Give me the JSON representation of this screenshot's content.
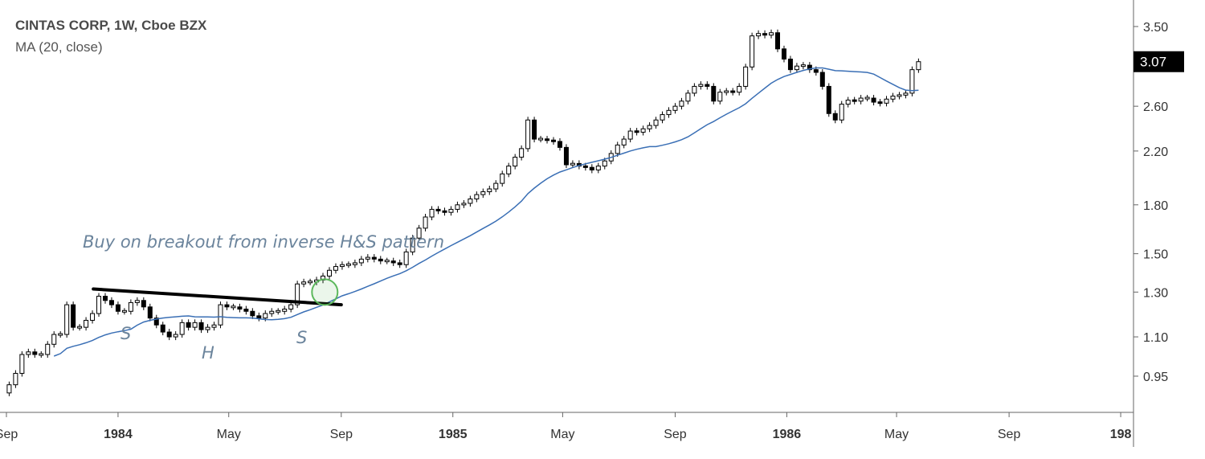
{
  "header": {
    "title": "CINTAS CORP, 1W, Cboe BZX",
    "indicator": "MA (20, close)"
  },
  "colors": {
    "candle_up_fill": "#ffffff",
    "candle_down_fill": "#000000",
    "candle_outline": "#000000",
    "ma_line": "#3a6fb5",
    "trendline": "#000000",
    "highlight_circle": "#5cb85c",
    "annotation_text": "#6b849c",
    "price_label_bg": "#000000"
  },
  "annotations": {
    "main_text": "Buy on breakout from inverse H&S pattern",
    "left_shoulder": "S",
    "head": "H",
    "right_shoulder": "S"
  },
  "last_price_label": "3.07",
  "chart_data": {
    "type": "candlestick",
    "interval": "1W",
    "y_scale": "log",
    "ylim": [
      0.83,
      3.75
    ],
    "xlim": [
      "1983-09-01",
      "1987-01-15"
    ],
    "y_ticks": [
      3.5,
      2.6,
      2.2,
      1.8,
      1.5,
      1.3,
      1.1,
      0.95
    ],
    "y_tick_labels": [
      "3.50",
      "2.60",
      "2.20",
      "1.80",
      "1.50",
      "1.30",
      "1.10",
      "0.95"
    ],
    "x_ticks": [
      {
        "label": "Sep",
        "bold": false,
        "date": "1983-09-01"
      },
      {
        "label": "1984",
        "bold": true,
        "date": "1984-01-01"
      },
      {
        "label": "May",
        "bold": false,
        "date": "1984-05-01"
      },
      {
        "label": "Sep",
        "bold": false,
        "date": "1984-09-01"
      },
      {
        "label": "1985",
        "bold": true,
        "date": "1985-01-01"
      },
      {
        "label": "May",
        "bold": false,
        "date": "1985-05-01"
      },
      {
        "label": "Sep",
        "bold": false,
        "date": "1985-09-01"
      },
      {
        "label": "1986",
        "bold": true,
        "date": "1986-01-01"
      },
      {
        "label": "May",
        "bold": false,
        "date": "1986-05-01"
      },
      {
        "label": "Sep",
        "bold": false,
        "date": "1986-09-01"
      },
      {
        "label": "198",
        "bold": true,
        "date": "1987-01-01"
      }
    ],
    "closes": [
      0.92,
      0.96,
      1.03,
      1.04,
      1.03,
      1.03,
      1.07,
      1.11,
      1.11,
      1.24,
      1.14,
      1.14,
      1.17,
      1.2,
      1.28,
      1.26,
      1.24,
      1.21,
      1.21,
      1.25,
      1.26,
      1.23,
      1.18,
      1.15,
      1.12,
      1.1,
      1.11,
      1.16,
      1.14,
      1.16,
      1.13,
      1.14,
      1.15,
      1.24,
      1.23,
      1.23,
      1.22,
      1.21,
      1.19,
      1.18,
      1.2,
      1.21,
      1.21,
      1.22,
      1.24,
      1.34,
      1.35,
      1.35,
      1.36,
      1.38,
      1.41,
      1.43,
      1.44,
      1.44,
      1.45,
      1.47,
      1.48,
      1.47,
      1.46,
      1.46,
      1.45,
      1.44,
      1.51,
      1.59,
      1.65,
      1.72,
      1.77,
      1.76,
      1.75,
      1.77,
      1.8,
      1.81,
      1.84,
      1.87,
      1.89,
      1.91,
      1.95,
      2.02,
      2.08,
      2.15,
      2.22,
      2.47,
      2.3,
      2.3,
      2.29,
      2.28,
      2.23,
      2.09,
      2.1,
      2.08,
      2.07,
      2.05,
      2.08,
      2.12,
      2.18,
      2.25,
      2.3,
      2.37,
      2.36,
      2.39,
      2.42,
      2.47,
      2.52,
      2.56,
      2.6,
      2.65,
      2.73,
      2.8,
      2.82,
      2.8,
      2.65,
      2.74,
      2.75,
      2.74,
      2.8,
      3.01,
      3.38,
      3.41,
      3.39,
      3.42,
      3.22,
      3.1,
      2.98,
      3.02,
      3.03,
      2.98,
      2.95,
      2.8,
      2.53,
      2.47,
      2.62,
      2.66,
      2.65,
      2.68,
      2.68,
      2.64,
      2.63,
      2.67,
      2.7,
      2.71,
      2.73,
      2.98,
      3.07
    ],
    "ma_period": 20,
    "indicator_name": "MA (20, close)"
  }
}
